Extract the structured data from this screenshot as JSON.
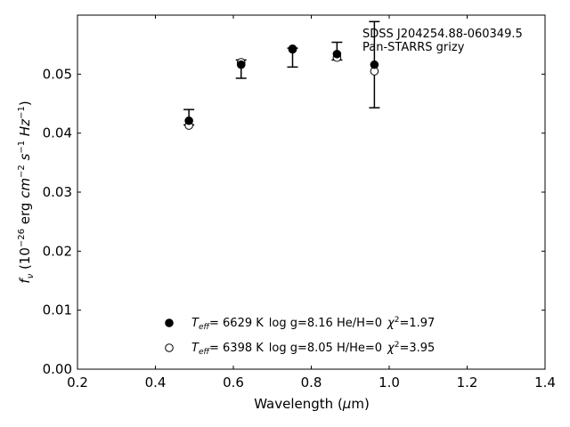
{
  "chart_data": {
    "type": "scatter",
    "xlabel": "Wavelength (μm)",
    "ylabel": "f_ν (10^-26 erg cm^-2 s^-1 Hz^-1)",
    "xlim": [
      0.2,
      1.4
    ],
    "ylim": [
      0.0,
      0.06
    ],
    "x_ticks": [
      0.2,
      0.4,
      0.6,
      0.8,
      1.0,
      1.2,
      1.4
    ],
    "y_ticks": [
      0.0,
      0.01,
      0.02,
      0.03,
      0.04,
      0.05
    ],
    "x_tick_labels": [
      "0.2",
      "0.4",
      "0.6",
      "0.8",
      "1.0",
      "1.2",
      "1.4"
    ],
    "y_tick_labels": [
      "0.00",
      "0.01",
      "0.02",
      "0.03",
      "0.04",
      "0.05"
    ],
    "grid": false,
    "annotation_lines": [
      "SDSS J204254.88-060349.5",
      "Pan-STARRS grizy"
    ],
    "observed": {
      "x": [
        0.486,
        0.62,
        0.752,
        0.866,
        0.962
      ],
      "y": [
        0.0419,
        0.0511,
        0.054,
        0.0532,
        0.0516
      ],
      "yerr_low": [
        0.0414,
        0.0493,
        0.0512,
        0.0524,
        0.0443
      ],
      "yerr_high": [
        0.044,
        0.0524,
        0.0544,
        0.0554,
        0.0589
      ]
    },
    "series": [
      {
        "marker": "filled",
        "x": [
          0.486,
          0.62,
          0.752,
          0.866,
          0.962
        ],
        "y": [
          0.0421,
          0.0516,
          0.0542,
          0.0534,
          0.0516
        ]
      },
      {
        "marker": "open",
        "x": [
          0.486,
          0.62,
          0.752,
          0.866,
          0.962
        ],
        "y": [
          0.0413,
          0.052,
          0.0543,
          0.0528,
          0.0505
        ]
      }
    ],
    "legend": {
      "placement": "lower-center",
      "entries": [
        {
          "marker": "filled",
          "teff_symbol": "T",
          "teff_sub": "eff",
          "teff_value": "=  6629 K",
          "rest": "log g=8.16  He/H=0",
          "chi_value": "=1.97"
        },
        {
          "marker": "open",
          "teff_symbol": "T",
          "teff_sub": "eff",
          "teff_value": "=  6398 K",
          "rest": "log g=8.05  H/He=0",
          "chi_value": "=3.95"
        }
      ]
    }
  }
}
